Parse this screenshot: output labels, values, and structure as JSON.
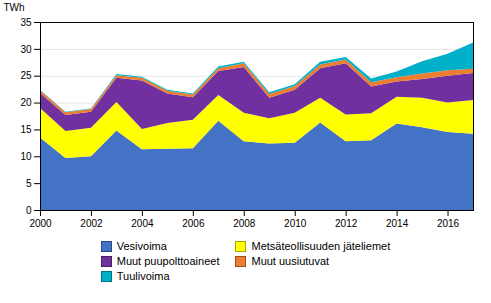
{
  "chart_data": {
    "type": "area",
    "stacked": true,
    "ylabel": "TWh",
    "x": [
      2000,
      2001,
      2002,
      2003,
      2004,
      2005,
      2006,
      2007,
      2008,
      2009,
      2010,
      2011,
      2012,
      2013,
      2014,
      2015,
      2016,
      2017
    ],
    "series": [
      {
        "name": "Vesivoima",
        "color": "#4472C4",
        "values": [
          13.5,
          9.7,
          10.0,
          14.8,
          11.3,
          11.4,
          11.5,
          16.6,
          12.8,
          12.4,
          12.5,
          16.3,
          12.8,
          13.0,
          16.1,
          15.4,
          14.5,
          14.2
        ]
      },
      {
        "name": "Metsäteollisuuden jäteliemet",
        "color": "#FFFF00",
        "values": [
          5.5,
          5.0,
          5.3,
          5.3,
          3.8,
          4.8,
          5.3,
          4.8,
          5.3,
          4.7,
          5.6,
          4.6,
          5.0,
          5.0,
          5.0,
          5.5,
          5.5,
          6.3
        ]
      },
      {
        "name": "Muut puupolttoaineet",
        "color": "#7030A0",
        "values": [
          2.8,
          3.0,
          3.0,
          4.5,
          9.0,
          5.5,
          4.2,
          4.5,
          8.5,
          3.8,
          4.3,
          5.5,
          9.5,
          5.0,
          2.8,
          3.5,
          5.0,
          5.0
        ]
      },
      {
        "name": "Muut uusiutuvat",
        "color": "#ED7D31",
        "values": [
          0.5,
          0.5,
          0.5,
          0.5,
          0.5,
          0.5,
          0.5,
          0.5,
          0.7,
          0.7,
          0.7,
          0.7,
          0.7,
          0.8,
          0.8,
          1.0,
          1.0,
          0.8
        ]
      },
      {
        "name": "Tuulivoima",
        "color": "#00B0C8",
        "values": [
          0.1,
          0.1,
          0.1,
          0.2,
          0.2,
          0.2,
          0.2,
          0.3,
          0.3,
          0.3,
          0.3,
          0.5,
          0.5,
          0.7,
          1.1,
          2.3,
          3.1,
          4.9
        ]
      }
    ],
    "xlim": [
      2000,
      2017
    ],
    "xticks": [
      2000,
      2002,
      2004,
      2006,
      2008,
      2010,
      2012,
      2014,
      2016
    ],
    "ylim": [
      0,
      35
    ],
    "yticks": [
      0,
      5,
      10,
      15,
      20,
      25,
      30,
      35
    ],
    "grid": true,
    "legend": "bottom"
  }
}
